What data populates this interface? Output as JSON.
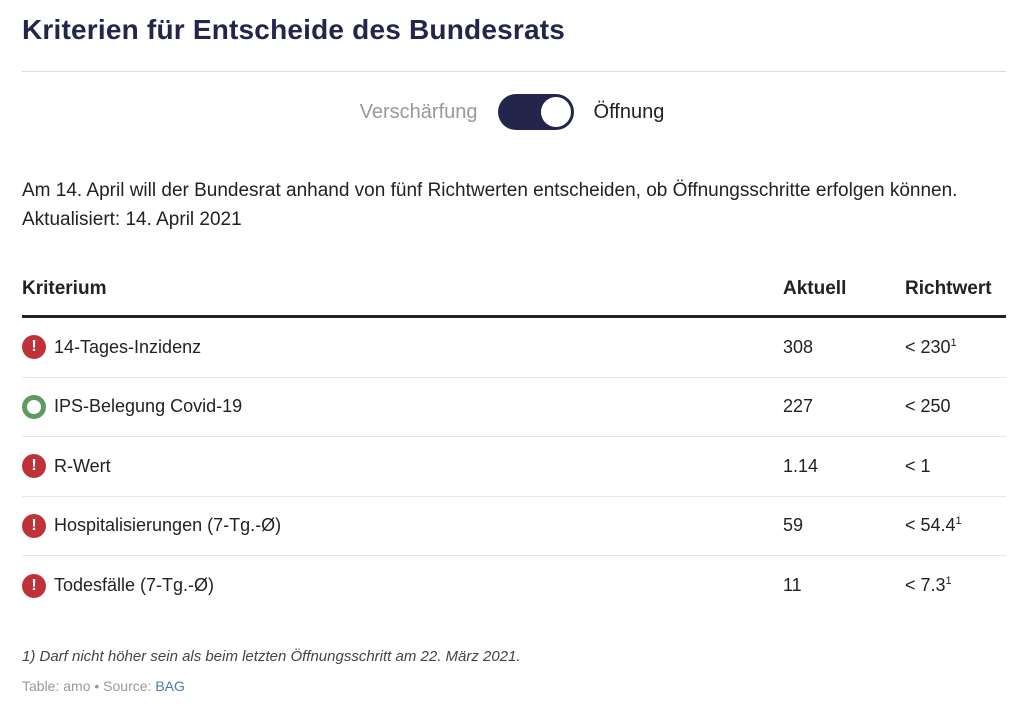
{
  "title": "Kriterien für Entscheide des Bundesrats",
  "toggle": {
    "left_label": "Verschärfung",
    "right_label": "Öffnung",
    "state": "Öffnung"
  },
  "description": "Am 14. April will der Bundesrat anhand von fünf Richtwerten entscheiden, ob Öffnungsschritte erfolgen können. Aktualisiert: 14. April 2021",
  "table": {
    "headers": [
      "Kriterium",
      "Aktuell",
      "Richtwert"
    ],
    "rows": [
      {
        "status": "alert-icon",
        "criterion": "14-Tages-Inzidenz",
        "current": "308",
        "target": "< 230",
        "footnote": "1"
      },
      {
        "status": "ok-circle-icon",
        "criterion": "IPS-Belegung Covid-19",
        "current": "227",
        "target": "< 250",
        "footnote": ""
      },
      {
        "status": "alert-icon",
        "criterion": "R-Wert",
        "current": "1.14",
        "target": "< 1",
        "footnote": ""
      },
      {
        "status": "alert-icon",
        "criterion": "Hospitalisierungen (7-Tg.-Ø)",
        "current": "59",
        "target": "< 54.4",
        "footnote": "1"
      },
      {
        "status": "alert-icon",
        "criterion": "Todesfälle (7-Tg.-Ø)",
        "current": "11",
        "target": "< 7.3",
        "footnote": "1"
      }
    ]
  },
  "footnote": "1) Darf nicht höher sein als beim letzten Öffnungsschritt am 22. März 2021.",
  "source": {
    "prefix": "Table: amo • Source: ",
    "link": "BAG"
  },
  "colors": {
    "navy": "#23264a",
    "alert": "#c0323a",
    "ok": "#5f9964"
  }
}
